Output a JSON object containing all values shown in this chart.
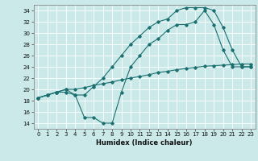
{
  "bg_color": "#cce9e9",
  "grid_color": "#ffffff",
  "line_color": "#1a7070",
  "xlabel": "Humidex (Indice chaleur)",
  "ylim": [
    13,
    35
  ],
  "xlim": [
    -0.5,
    23.5
  ],
  "yticks": [
    14,
    16,
    18,
    20,
    22,
    24,
    26,
    28,
    30,
    32,
    34
  ],
  "xticks": [
    0,
    1,
    2,
    3,
    4,
    5,
    6,
    7,
    8,
    9,
    10,
    11,
    12,
    13,
    14,
    15,
    16,
    17,
    18,
    19,
    20,
    21,
    22,
    23
  ],
  "line1_x": [
    0,
    1,
    2,
    3,
    4,
    5,
    6,
    7,
    8,
    9,
    10,
    11,
    12,
    13,
    14,
    15,
    16,
    17,
    18,
    19,
    20,
    21,
    22,
    23
  ],
  "line1_y": [
    18.5,
    19.0,
    19.5,
    20.0,
    20.0,
    20.3,
    20.7,
    21.0,
    21.3,
    21.7,
    22.0,
    22.3,
    22.6,
    23.0,
    23.2,
    23.5,
    23.7,
    23.9,
    24.1,
    24.2,
    24.3,
    24.4,
    24.5,
    24.5
  ],
  "line2_x": [
    0,
    1,
    2,
    3,
    4,
    5,
    6,
    7,
    8,
    9,
    10,
    11,
    12,
    13,
    14,
    15,
    16,
    17,
    18,
    19,
    20,
    21,
    22,
    23
  ],
  "line2_y": [
    18.5,
    19.0,
    19.5,
    20.0,
    19.0,
    19.0,
    20.5,
    22.0,
    24.0,
    26.0,
    28.0,
    29.5,
    31.0,
    32.0,
    32.5,
    34.0,
    34.5,
    34.5,
    34.5,
    34.0,
    31.0,
    27.0,
    24.0,
    24.0
  ],
  "line3_x": [
    0,
    1,
    2,
    3,
    4,
    5,
    6,
    7,
    8,
    9,
    10,
    11,
    12,
    13,
    14,
    15,
    16,
    17,
    18,
    19,
    20,
    21,
    22,
    23
  ],
  "line3_y": [
    18.5,
    19.0,
    19.5,
    19.5,
    19.0,
    15.0,
    15.0,
    14.0,
    14.0,
    19.5,
    24.0,
    26.0,
    28.0,
    29.0,
    30.5,
    31.5,
    31.5,
    32.0,
    34.0,
    31.5,
    27.0,
    24.0,
    24.0,
    24.0
  ],
  "tick_fontsize": 5.0,
  "xlabel_fontsize": 6.0,
  "marker_size": 1.8,
  "line_width": 0.8
}
